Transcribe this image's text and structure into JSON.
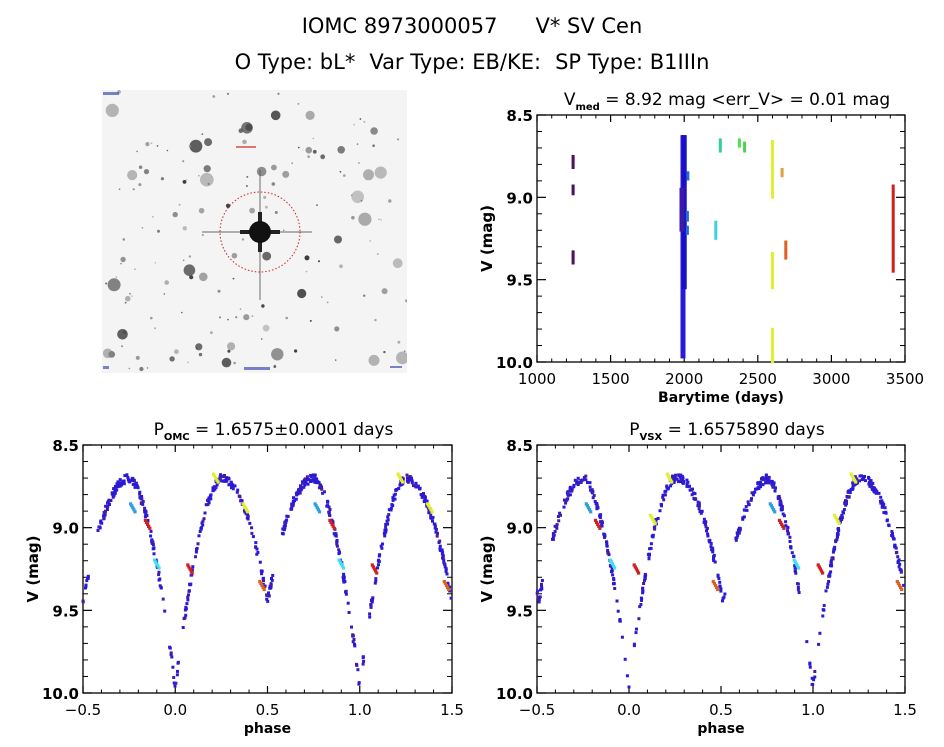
{
  "header": {
    "id_label": "IOMC 8973000057",
    "simbad_name": "V* SV Cen",
    "otype": "O Type: bL*",
    "vartype": "Var Type: EB/KE:",
    "sptype": "SP Type: B1IIIn"
  },
  "image_panel": {
    "description": "Sky cutout (grayscale star field) with dashed red circle marking the target",
    "circle_color": "#cc2222"
  },
  "chart_data": [
    {
      "type": "scatter",
      "name": "light-curve",
      "title_main": "V",
      "title_sub": "med",
      "title_rest": " = 8.92 mag <err_V> = 0.01 mag",
      "xlabel": "Barytime (days)",
      "ylabel": "V (mag)",
      "xlim": [
        1000,
        3500
      ],
      "ylim": [
        10.0,
        8.5
      ],
      "y_inverted": true,
      "xticks": [
        1000,
        1500,
        2000,
        2500,
        3000,
        3500
      ],
      "xtick_labels": [
        "1000",
        "1500",
        "2000",
        "2500",
        "3000",
        "3500"
      ],
      "yticks": [
        8.5,
        9.0,
        9.5,
        10.0
      ],
      "ytick_labels": [
        "8.5",
        "9.0",
        "9.5",
        "10.0"
      ],
      "grid": false,
      "segments": [
        {
          "x": 1245,
          "y0": 8.75,
          "y1": 8.82,
          "color": "#4b1060"
        },
        {
          "x": 1245,
          "y0": 8.93,
          "y1": 8.98,
          "color": "#4b1060"
        },
        {
          "x": 1245,
          "y0": 9.33,
          "y1": 9.4,
          "color": "#4b1060"
        },
        {
          "x": 1992,
          "y0": 8.63,
          "y1": 9.97,
          "color": "#2a1ad8"
        },
        {
          "x": 2000,
          "y0": 8.63,
          "y1": 9.55,
          "color": "#1a10c8"
        },
        {
          "x": 1985,
          "y0": 8.95,
          "y1": 9.2,
          "color": "#3a1aa8"
        },
        {
          "x": 2025,
          "y0": 8.85,
          "y1": 8.89,
          "color": "#2a6ad8"
        },
        {
          "x": 2022,
          "y0": 9.09,
          "y1": 9.14,
          "color": "#2a6ad8"
        },
        {
          "x": 2022,
          "y0": 9.18,
          "y1": 9.22,
          "color": "#2a6ad8"
        },
        {
          "x": 2215,
          "y0": 9.15,
          "y1": 9.25,
          "color": "#40d0e0"
        },
        {
          "x": 2245,
          "y0": 8.65,
          "y1": 8.72,
          "color": "#30d090"
        },
        {
          "x": 2375,
          "y0": 8.65,
          "y1": 8.69,
          "color": "#50e050"
        },
        {
          "x": 2410,
          "y0": 8.67,
          "y1": 8.72,
          "color": "#50d050"
        },
        {
          "x": 2600,
          "y0": 8.66,
          "y1": 9.0,
          "color": "#e0f030"
        },
        {
          "x": 2600,
          "y0": 9.34,
          "y1": 9.55,
          "color": "#e0f030"
        },
        {
          "x": 2600,
          "y0": 9.8,
          "y1": 10.0,
          "color": "#e0f030"
        },
        {
          "x": 2665,
          "y0": 8.83,
          "y1": 8.87,
          "color": "#e0a040"
        },
        {
          "x": 2690,
          "y0": 9.27,
          "y1": 9.37,
          "color": "#e06020"
        },
        {
          "x": 3420,
          "y0": 8.93,
          "y1": 9.45,
          "color": "#d02020"
        }
      ]
    },
    {
      "type": "scatter",
      "name": "phase-omc",
      "title_main": "P",
      "title_sub": "OMC",
      "title_rest": " = 1.6575±0.0001 days",
      "xlabel": "phase",
      "ylabel": "V (mag)",
      "xlim": [
        -0.5,
        1.5
      ],
      "ylim": [
        10.0,
        8.5
      ],
      "y_inverted": true,
      "xticks": [
        -0.5,
        0.0,
        0.5,
        1.0,
        1.5
      ],
      "xtick_labels": [
        "−0.5",
        "0.0",
        "0.5",
        "1.0",
        "1.5"
      ],
      "yticks": [
        8.5,
        9.0,
        9.5,
        10.0
      ],
      "ytick_labels": [
        "8.5",
        "9.0",
        "9.5",
        "10.0"
      ],
      "grid": false,
      "curve_model": {
        "primary_min_phase": 0.0,
        "primary_min_mag": 10.0,
        "secondary_min_phase": 0.5,
        "secondary_min_mag": 9.48,
        "max_mag": 8.67
      },
      "highlights": [
        {
          "phase": -0.23,
          "mag": 8.88,
          "color": "#2aa0e0"
        },
        {
          "phase": 0.77,
          "mag": 8.88,
          "color": "#2aa0e0"
        },
        {
          "phase": -0.1,
          "mag": 9.22,
          "color": "#40e0f0"
        },
        {
          "phase": 0.9,
          "mag": 9.22,
          "color": "#40e0f0"
        },
        {
          "phase": -0.15,
          "mag": 8.98,
          "color": "#d02020"
        },
        {
          "phase": 0.85,
          "mag": 8.98,
          "color": "#d02020"
        },
        {
          "phase": 0.08,
          "mag": 9.25,
          "color": "#d02020"
        },
        {
          "phase": 1.08,
          "mag": 9.25,
          "color": "#d02020"
        },
        {
          "phase": 0.22,
          "mag": 8.7,
          "color": "#e0f030"
        },
        {
          "phase": 1.22,
          "mag": 8.7,
          "color": "#e0f030"
        },
        {
          "phase": 0.38,
          "mag": 8.88,
          "color": "#e0f030"
        },
        {
          "phase": 1.38,
          "mag": 8.88,
          "color": "#e0f030"
        },
        {
          "phase": 0.47,
          "mag": 9.35,
          "color": "#e06020"
        },
        {
          "phase": 1.47,
          "mag": 9.35,
          "color": "#e06020"
        }
      ]
    },
    {
      "type": "scatter",
      "name": "phase-vsx",
      "title_main": "P",
      "title_sub": "VSX",
      "title_rest": " = 1.6575890 days",
      "xlabel": "phase",
      "ylabel": "V (mag)",
      "xlim": [
        -0.5,
        1.5
      ],
      "ylim": [
        10.0,
        8.5
      ],
      "y_inverted": true,
      "xticks": [
        -0.5,
        0.0,
        0.5,
        1.0,
        1.5
      ],
      "xtick_labels": [
        "−0.5",
        "0.0",
        "0.5",
        "1.0",
        "1.5"
      ],
      "yticks": [
        8.5,
        9.0,
        9.5,
        10.0
      ],
      "ytick_labels": [
        "8.5",
        "9.0",
        "9.5",
        "10.0"
      ],
      "grid": false,
      "curve_model": {
        "primary_min_phase": 0.0,
        "primary_min_mag": 10.0,
        "secondary_min_phase": 0.51,
        "secondary_min_mag": 9.48,
        "max_mag": 8.67
      },
      "highlights": [
        {
          "phase": -0.22,
          "mag": 8.88,
          "color": "#2aa0e0"
        },
        {
          "phase": 0.78,
          "mag": 8.88,
          "color": "#2aa0e0"
        },
        {
          "phase": -0.09,
          "mag": 9.22,
          "color": "#40e0f0"
        },
        {
          "phase": 0.91,
          "mag": 9.22,
          "color": "#40e0f0"
        },
        {
          "phase": -0.17,
          "mag": 8.98,
          "color": "#d02020"
        },
        {
          "phase": 0.83,
          "mag": 8.98,
          "color": "#d02020"
        },
        {
          "phase": 0.04,
          "mag": 9.25,
          "color": "#d02020"
        },
        {
          "phase": 1.04,
          "mag": 9.25,
          "color": "#d02020"
        },
        {
          "phase": 0.22,
          "mag": 8.7,
          "color": "#e0f030"
        },
        {
          "phase": 1.22,
          "mag": 8.7,
          "color": "#e0f030"
        },
        {
          "phase": 0.13,
          "mag": 8.95,
          "color": "#e0f030"
        },
        {
          "phase": 1.13,
          "mag": 8.95,
          "color": "#e0f030"
        },
        {
          "phase": 0.47,
          "mag": 9.35,
          "color": "#e06020"
        },
        {
          "phase": 1.47,
          "mag": 9.35,
          "color": "#e06020"
        }
      ]
    }
  ]
}
